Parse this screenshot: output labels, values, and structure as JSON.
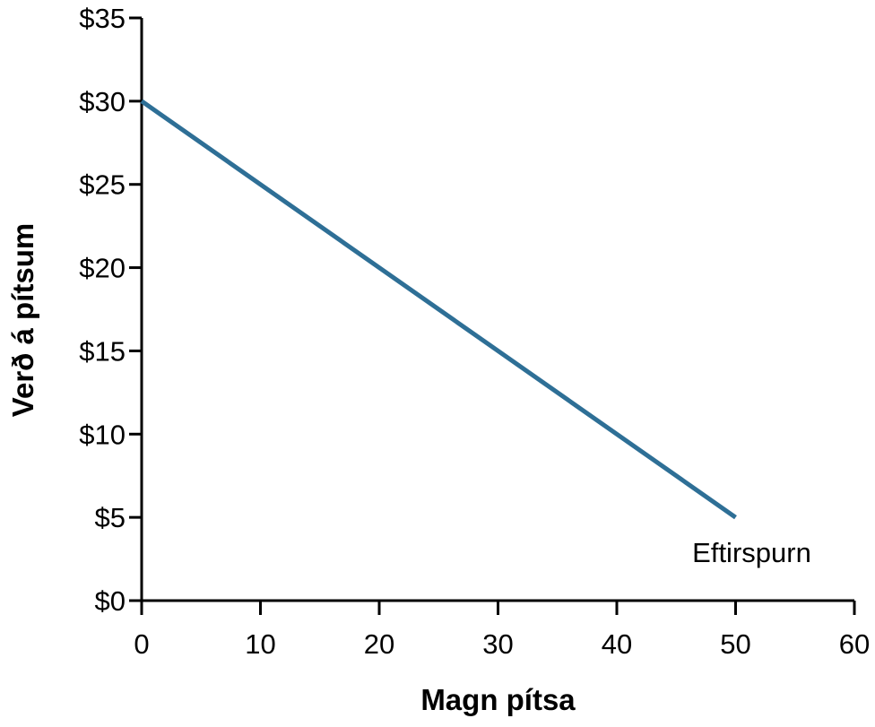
{
  "chart_data": {
    "type": "line",
    "title": "",
    "xlabel": "Magn pítsa",
    "ylabel": "Verð á pítsum",
    "xlim": [
      0,
      60
    ],
    "ylim": [
      0,
      35
    ],
    "x_ticks": [
      0,
      10,
      20,
      30,
      40,
      50,
      60
    ],
    "x_tick_labels": [
      "0",
      "10",
      "20",
      "30",
      "40",
      "50",
      "60"
    ],
    "y_ticks": [
      0,
      5,
      10,
      15,
      20,
      25,
      30,
      35
    ],
    "y_tick_labels": [
      "$0",
      "$5",
      "$10",
      "$15",
      "$20",
      "$25",
      "$30",
      "$35"
    ],
    "grid": false,
    "series": [
      {
        "name": "Eftirspurn",
        "color": "#2e6f96",
        "x": [
          0,
          50
        ],
        "y": [
          30,
          5
        ]
      }
    ]
  }
}
